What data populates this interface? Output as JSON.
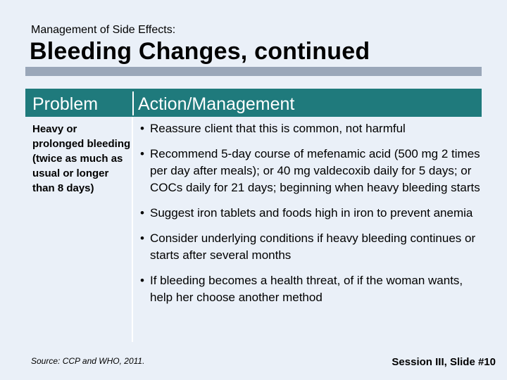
{
  "slide": {
    "supertitle": "Management of Side Effects:",
    "title": "Bleeding Changes, continued"
  },
  "table": {
    "headers": {
      "problem": "Problem",
      "action": "Action/Management"
    },
    "problem": "Heavy or prolonged bleeding (twice as much as usual or longer than 8 days)",
    "bullet_glyph": "•",
    "actions": [
      "Reassure client that this is common, not harmful",
      "Recommend 5-day course of mefenamic acid (500 mg 2 times per day after meals); or 40 mg valdecoxib daily for 5 days; or COCs daily for 21 days; beginning when heavy bleeding starts",
      "Suggest iron tablets and foods high in iron to prevent anemia",
      "Consider underlying conditions if heavy bleeding continues or starts after several months",
      "If bleeding becomes a health threat, of if the woman wants, help her choose another method"
    ]
  },
  "footer": {
    "source": "Source: CCP and WHO, 2011.",
    "slide_number": "Session III, Slide #10"
  },
  "colors": {
    "background": "#eaf0f8",
    "header_fill": "#1f7a7c",
    "title_rule": "#9aa7b9"
  }
}
